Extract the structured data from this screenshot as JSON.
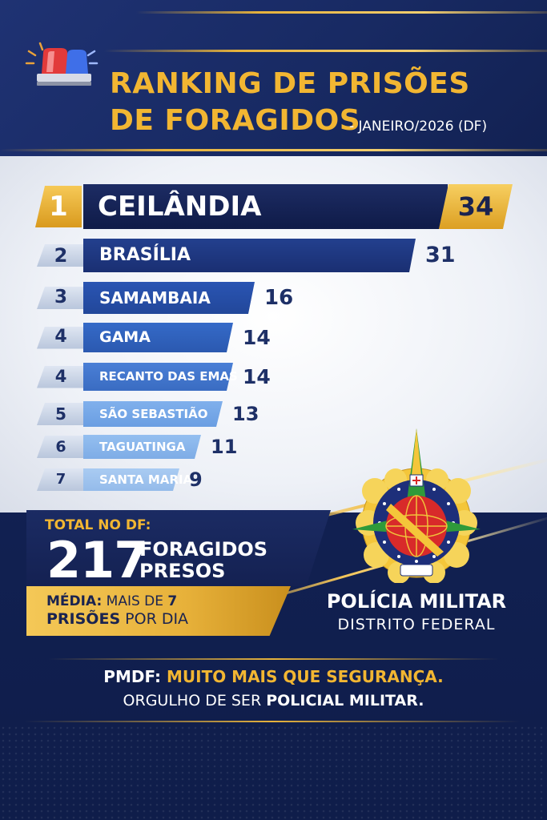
{
  "header": {
    "title_line1": "RANKING DE PRISÕES",
    "title_line2": "DE FORAGIDOS",
    "subtitle": "- JANEIRO/2026 (DF)"
  },
  "chart_data": {
    "type": "bar",
    "orientation": "horizontal",
    "ranks": [
      "1",
      "2",
      "3",
      "4",
      "4",
      "5",
      "6",
      "7"
    ],
    "categories": [
      "CEILÂNDIA",
      "BRASÍLIA",
      "SAMAMBAIA",
      "GAMA",
      "RECANTO DAS EMAS",
      "SÃO SEBASTIÃO",
      "TAGUATINGA",
      "SANTA MARIA"
    ],
    "values": [
      34,
      31,
      16,
      14,
      14,
      13,
      11,
      9
    ],
    "value_labels": [
      "34",
      "31",
      "16",
      "14",
      "14",
      "13",
      "11",
      "9"
    ]
  },
  "total": {
    "label": "TOTAL NO DF:",
    "value": "217",
    "unit_line1": "FORAGIDOS",
    "unit_line2": "PRESOS"
  },
  "average": {
    "bold1": "MÉDIA:",
    "text1": " MAIS DE ",
    "num": "7",
    "bold2": "PRISÕES",
    "text2": " POR DIA"
  },
  "pmdf": {
    "name": "POLÍCIA MILITAR",
    "sub": "DISTRITO FEDERAL"
  },
  "footer": {
    "l1_white": "PMDF: ",
    "l1_gold": "MUITO MAIS QUE SEGURANÇA.",
    "l2_normal": "ORGULHO DE SER ",
    "l2_bold": "POLICIAL MILITAR."
  },
  "colors": {
    "gold": "#f2b632",
    "navy": "#1e3067"
  },
  "icons": {
    "siren": "police-siren-icon",
    "emblem": "pmdf-emblem"
  }
}
